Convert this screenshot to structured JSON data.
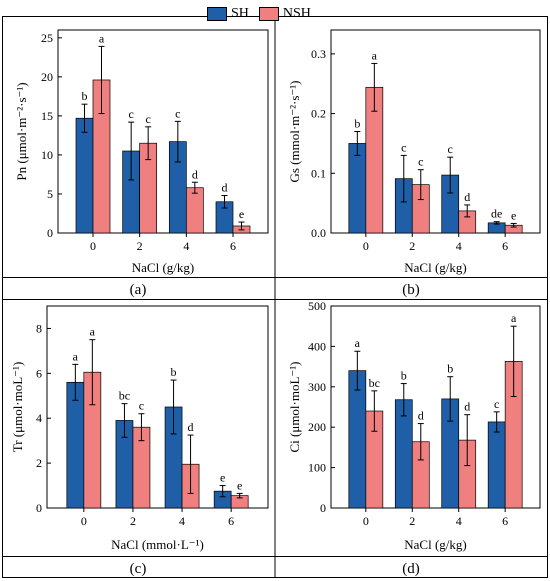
{
  "legend": [
    {
      "name": "SH",
      "color": "#1f5fa8"
    },
    {
      "name": "NSH",
      "color": "#f08080"
    }
  ],
  "chart_data": [
    {
      "type": "bar",
      "panel_label": "(a)",
      "title": "",
      "xlabel": "NaCl (g/kg)",
      "ylabel": "Pn (μmol·m⁻²·s⁻¹)",
      "categories": [
        "0",
        "2",
        "4",
        "6"
      ],
      "ylim": [
        0,
        26
      ],
      "yticks": [
        0,
        5,
        10,
        15,
        20,
        25
      ],
      "series": [
        {
          "name": "SH",
          "color": "#1f5fa8",
          "values": [
            14.7,
            10.5,
            11.7,
            4.0
          ],
          "errors": [
            1.8,
            3.7,
            2.6,
            0.8
          ],
          "letters": [
            "b",
            "c",
            "c",
            "d"
          ]
        },
        {
          "name": "NSH",
          "color": "#f08080",
          "values": [
            19.6,
            11.5,
            5.8,
            0.9
          ],
          "errors": [
            4.3,
            2.1,
            0.7,
            0.5
          ],
          "letters": [
            "a",
            "c",
            "d",
            "e"
          ]
        }
      ]
    },
    {
      "type": "bar",
      "panel_label": "(b)",
      "title": "",
      "xlabel": "NaCl (g/kg)",
      "ylabel": "Gs (mmol·m⁻²·s⁻¹)",
      "categories": [
        "0",
        "2",
        "4",
        "6"
      ],
      "ylim": [
        0,
        0.34
      ],
      "yticks": [
        0.0,
        0.1,
        0.2,
        0.3
      ],
      "tick_decimals": 1,
      "series": [
        {
          "name": "SH",
          "color": "#1f5fa8",
          "values": [
            0.15,
            0.091,
            0.097,
            0.017
          ],
          "errors": [
            0.02,
            0.039,
            0.03,
            0.002
          ],
          "letters": [
            "b",
            "c",
            "c",
            "de"
          ]
        },
        {
          "name": "NSH",
          "color": "#f08080",
          "values": [
            0.244,
            0.081,
            0.037,
            0.013
          ],
          "errors": [
            0.04,
            0.025,
            0.01,
            0.003
          ],
          "letters": [
            "a",
            "c",
            "d",
            "e"
          ]
        }
      ]
    },
    {
      "type": "bar",
      "panel_label": "(c)",
      "title": "",
      "xlabel": "NaCl (mmol·L⁻¹)",
      "ylabel": "Tr (μmol·moL⁻¹)",
      "categories": [
        "0",
        "2",
        "4",
        "6"
      ],
      "ylim": [
        0,
        9
      ],
      "yticks": [
        0,
        2,
        4,
        6,
        8
      ],
      "series": [
        {
          "name": "SH",
          "color": "#1f5fa8",
          "values": [
            5.6,
            3.9,
            4.5,
            0.75
          ],
          "errors": [
            0.8,
            0.75,
            1.2,
            0.25
          ],
          "letters": [
            "a",
            "bc",
            "b",
            "e"
          ]
        },
        {
          "name": "NSH",
          "color": "#f08080",
          "values": [
            6.05,
            3.6,
            1.95,
            0.55
          ],
          "errors": [
            1.45,
            0.6,
            1.3,
            0.1
          ],
          "letters": [
            "a",
            "c",
            "d",
            "e"
          ]
        }
      ]
    },
    {
      "type": "bar",
      "panel_label": "(d)",
      "title": "",
      "xlabel": "NaCl (g/kg)",
      "ylabel": "Ci (μmol·moL⁻¹)",
      "categories": [
        "0",
        "2",
        "4",
        "6"
      ],
      "ylim": [
        0,
        500
      ],
      "yticks": [
        0,
        100,
        200,
        300,
        400,
        500
      ],
      "series": [
        {
          "name": "SH",
          "color": "#1f5fa8",
          "values": [
            340,
            268,
            270,
            213
          ],
          "errors": [
            48,
            40,
            55,
            25
          ],
          "letters": [
            "a",
            "b",
            "b",
            "c"
          ]
        },
        {
          "name": "NSH",
          "color": "#f08080",
          "values": [
            240,
            164,
            168,
            363
          ],
          "errors": [
            50,
            45,
            63,
            87
          ],
          "letters": [
            "bc",
            "d",
            "d",
            "a"
          ]
        }
      ]
    }
  ]
}
